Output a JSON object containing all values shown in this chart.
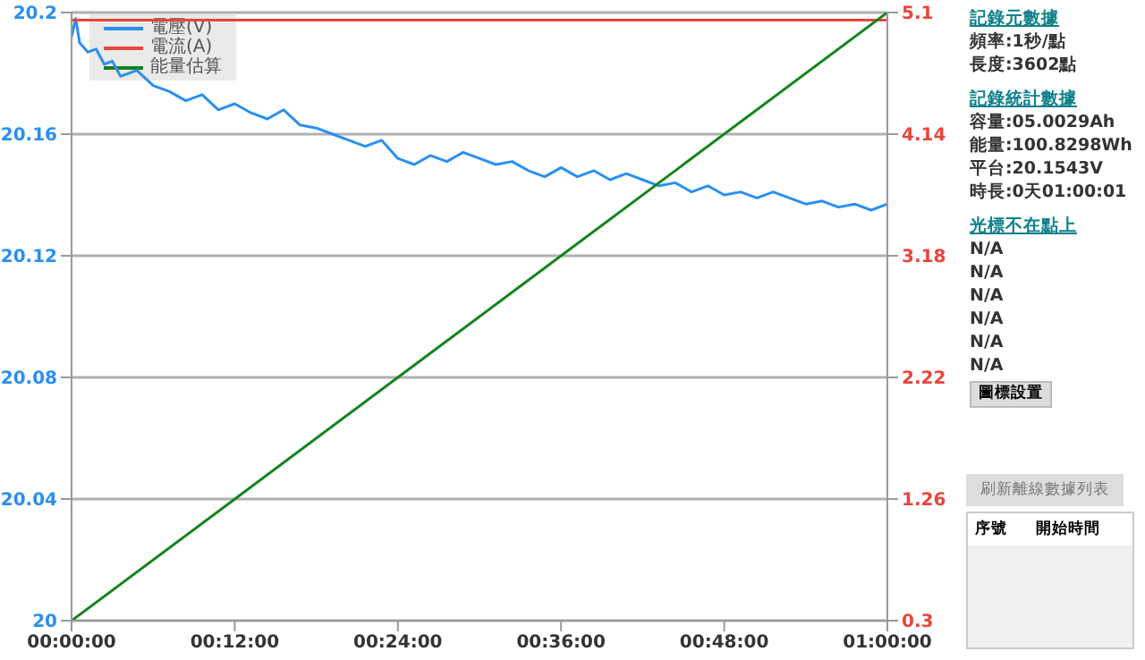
{
  "chart_data": {
    "type": "line",
    "xlim": [
      0,
      1
    ],
    "xticks": [
      {
        "value": 0,
        "label": "00:00:00"
      },
      {
        "value": 0.2,
        "label": "00:12:00"
      },
      {
        "value": 0.4,
        "label": "00:24:00"
      },
      {
        "value": 0.6,
        "label": "00:36:00"
      },
      {
        "value": 0.8,
        "label": "00:48:00"
      },
      {
        "value": 1,
        "label": "01:00:00"
      }
    ],
    "ylim": [
      20,
      20.2
    ],
    "yticks": [
      20,
      20.04,
      20.08,
      20.12,
      20.16,
      20.2
    ],
    "y2lim": [
      0.3,
      5.1
    ],
    "y2ticks": [
      0.3,
      1.26,
      2.22,
      3.18,
      4.14,
      5.1
    ],
    "grid": "y",
    "legend": "top left",
    "series": [
      {
        "name": "電壓(V)",
        "color": "#2b8fef",
        "x": [
          0,
          0.005,
          0.01,
          0.02,
          0.03,
          0.04,
          0.05,
          0.06,
          0.08,
          0.1,
          0.12,
          0.14,
          0.16,
          0.18,
          0.2,
          0.22,
          0.24,
          0.26,
          0.28,
          0.3,
          0.32,
          0.34,
          0.36,
          0.38,
          0.4,
          0.42,
          0.44,
          0.46,
          0.48,
          0.5,
          0.52,
          0.54,
          0.56,
          0.58,
          0.6,
          0.62,
          0.64,
          0.66,
          0.68,
          0.7,
          0.72,
          0.74,
          0.76,
          0.78,
          0.8,
          0.82,
          0.84,
          0.86,
          0.88,
          0.9,
          0.92,
          0.94,
          0.96,
          0.98,
          1
        ],
        "values": [
          20.192,
          20.198,
          20.19,
          20.187,
          20.188,
          20.183,
          20.184,
          20.179,
          20.181,
          20.176,
          20.174,
          20.171,
          20.173,
          20.168,
          20.17,
          20.167,
          20.165,
          20.168,
          20.163,
          20.162,
          20.16,
          20.158,
          20.156,
          20.158,
          20.152,
          20.15,
          20.153,
          20.151,
          20.154,
          20.152,
          20.15,
          20.151,
          20.148,
          20.146,
          20.149,
          20.146,
          20.148,
          20.145,
          20.147,
          20.145,
          20.143,
          20.144,
          20.141,
          20.143,
          20.14,
          20.141,
          20.139,
          20.141,
          20.139,
          20.137,
          20.138,
          20.136,
          20.137,
          20.135,
          20.137
        ]
      },
      {
        "name": "電流(A)",
        "color": "#e8453c",
        "axis": "y2",
        "x": [
          0,
          1
        ],
        "values": [
          5.04,
          5.04
        ]
      },
      {
        "name": "能量估算",
        "color": "#13831b",
        "x": [
          0,
          1
        ],
        "values": [
          20,
          20.2
        ]
      }
    ],
    "annotations": [
      "記錄元數據",
      "頻率:1秒/點",
      "長度:3602點",
      "記錄統計數據",
      "容量:05.0029Ah",
      "能量:100.8298Wh",
      "平台:20.1543V",
      "時長:0天01:00:01",
      "光標不在點上",
      "N/A",
      "N/A",
      "N/A",
      "N/A",
      "N/A",
      "N/A",
      "圖標設置",
      "刷新離線數據列表",
      "序號",
      "開始時間"
    ]
  }
}
